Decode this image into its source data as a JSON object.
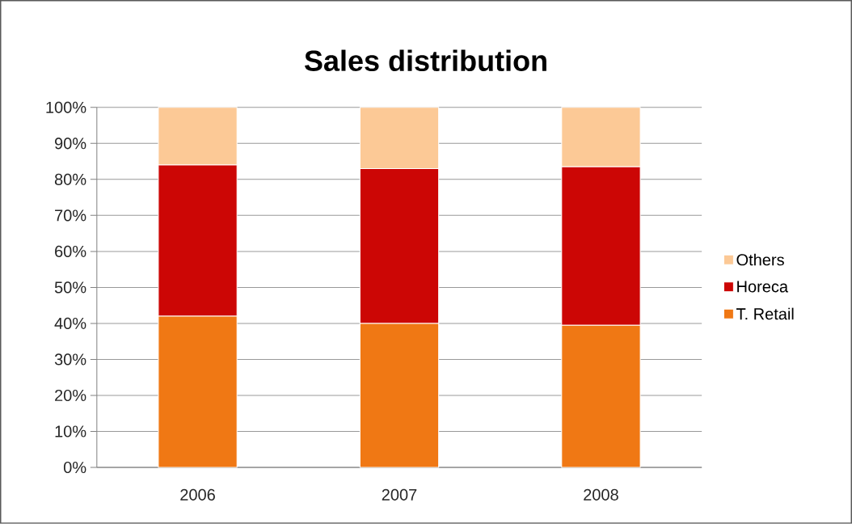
{
  "chart_data": {
    "type": "bar",
    "title": "Sales distribution",
    "categories": [
      "2006",
      "2007",
      "2008"
    ],
    "stacked": true,
    "series": [
      {
        "name": "T. Retail",
        "color": "#f07814",
        "values": [
          42,
          40,
          39.5
        ]
      },
      {
        "name": "Horeca",
        "color": "#cc0605",
        "values": [
          42,
          43,
          44
        ]
      },
      {
        "name": "Others",
        "color": "#fcc996",
        "values": [
          16,
          17,
          16.5
        ]
      }
    ],
    "ylim": [
      0,
      100
    ],
    "yticks": [
      {
        "value": 0,
        "label": "0%"
      },
      {
        "value": 10,
        "label": "10%"
      },
      {
        "value": 20,
        "label": "20%"
      },
      {
        "value": 30,
        "label": "30%"
      },
      {
        "value": 40,
        "label": "40%"
      },
      {
        "value": 50,
        "label": "50%"
      },
      {
        "value": 60,
        "label": "60%"
      },
      {
        "value": 70,
        "label": "70%"
      },
      {
        "value": 80,
        "label": "80%"
      },
      {
        "value": 90,
        "label": "90%"
      },
      {
        "value": 100,
        "label": "100%"
      }
    ],
    "grid": "y",
    "legend": "right"
  }
}
